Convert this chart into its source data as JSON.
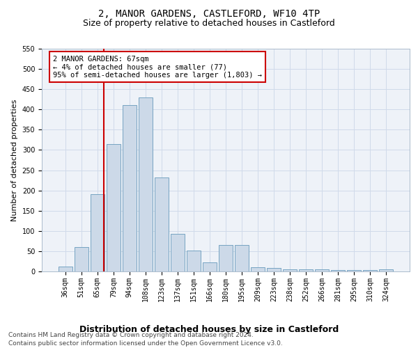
{
  "title": "2, MANOR GARDENS, CASTLEFORD, WF10 4TP",
  "subtitle": "Size of property relative to detached houses in Castleford",
  "xlabel": "Distribution of detached houses by size in Castleford",
  "ylabel": "Number of detached properties",
  "categories": [
    "36sqm",
    "51sqm",
    "65sqm",
    "79sqm",
    "94sqm",
    "108sqm",
    "123sqm",
    "137sqm",
    "151sqm",
    "166sqm",
    "180sqm",
    "195sqm",
    "209sqm",
    "223sqm",
    "238sqm",
    "252sqm",
    "266sqm",
    "281sqm",
    "295sqm",
    "310sqm",
    "324sqm"
  ],
  "values": [
    12,
    60,
    190,
    315,
    410,
    430,
    232,
    92,
    52,
    22,
    65,
    65,
    10,
    8,
    5,
    5,
    5,
    4,
    4,
    4,
    5
  ],
  "bar_color": "#ccd9e8",
  "bar_edgecolor": "#6699bb",
  "vline_color": "#cc0000",
  "annotation_text": "2 MANOR GARDENS: 67sqm\n← 4% of detached houses are smaller (77)\n95% of semi-detached houses are larger (1,803) →",
  "annotation_box_facecolor": "#ffffff",
  "annotation_box_edgecolor": "#cc0000",
  "ylim": [
    0,
    550
  ],
  "yticks": [
    0,
    50,
    100,
    150,
    200,
    250,
    300,
    350,
    400,
    450,
    500,
    550
  ],
  "grid_color": "#d0daea",
  "background_color": "#eef2f8",
  "footer_line1": "Contains HM Land Registry data © Crown copyright and database right 2024.",
  "footer_line2": "Contains public sector information licensed under the Open Government Licence v3.0.",
  "title_fontsize": 10,
  "subtitle_fontsize": 9,
  "xlabel_fontsize": 9,
  "ylabel_fontsize": 8,
  "tick_fontsize": 7,
  "annotation_fontsize": 7.5,
  "footer_fontsize": 6.5
}
